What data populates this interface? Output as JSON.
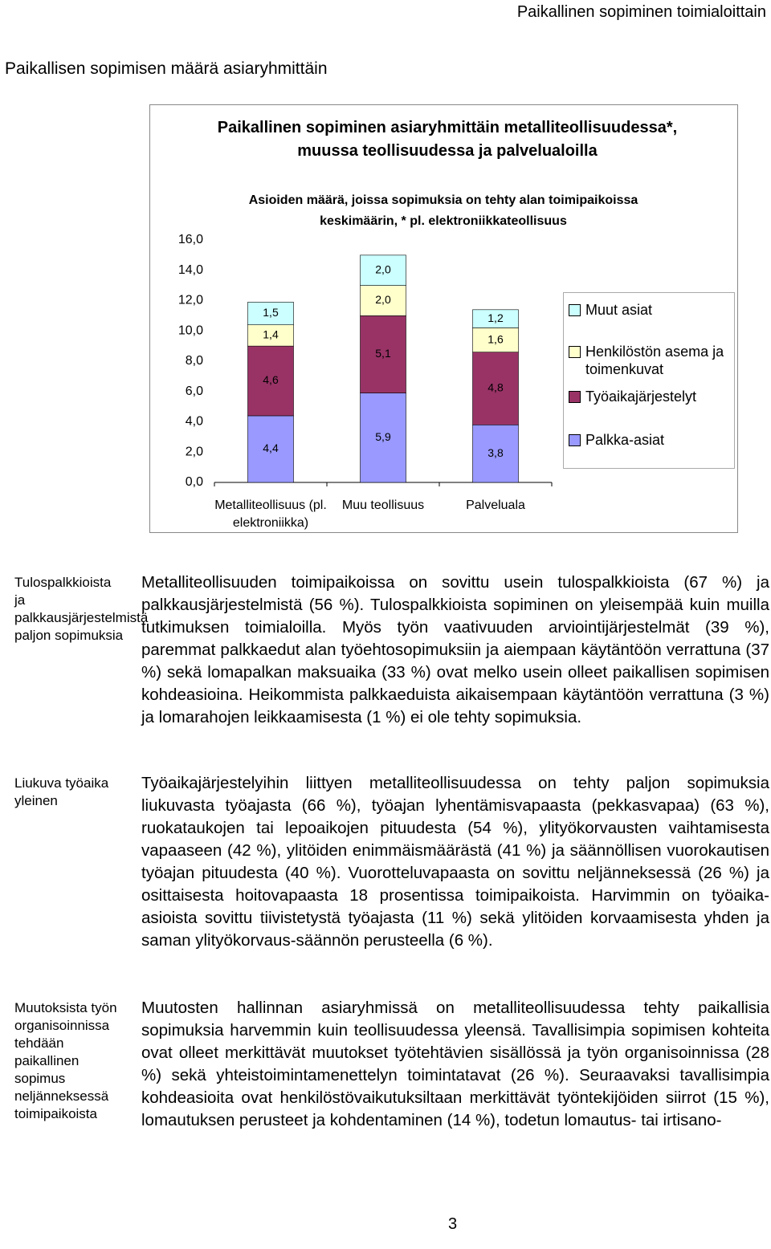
{
  "header": {
    "running_title": "Paikallinen sopiminen toimialoittain",
    "section_title": "Paikallisen sopimisen määrä asiaryhmittäin"
  },
  "chart_data": {
    "type": "stacked-bar",
    "title": "Paikallinen sopiminen asiaryhmittäin metalliteollisuudessa*, muussa teollisuudessa ja palvelualoilla",
    "subtitle": "Asioiden määrä, joissa sopimuksia on tehty alan toimipaikoissa keskimäärin, * pl. elektroniikkateollisuus",
    "categories": [
      "Metalliteollisuus (pl. elektroniikka)",
      "Muu teollisuus",
      "Palveluala"
    ],
    "series": [
      {
        "name": "Palkka-asiat",
        "color": "#9999ff",
        "values": [
          4.4,
          5.9,
          3.8
        ],
        "value_labels": [
          "4,4",
          "5,9",
          "3,8"
        ]
      },
      {
        "name": "Työaikajärjestelyt",
        "color": "#993366",
        "values": [
          4.6,
          5.1,
          4.8
        ],
        "value_labels": [
          "4,6",
          "5,1",
          "4,8"
        ]
      },
      {
        "name": "Henkilöstön asema ja toimenkuvat",
        "color": "#ffffcc",
        "values": [
          1.4,
          2.0,
          1.6
        ],
        "value_labels": [
          "1,4",
          "2,0",
          "1,6"
        ]
      },
      {
        "name": "Muut asiat",
        "color": "#ccffff",
        "values": [
          1.5,
          2.0,
          1.2
        ],
        "value_labels": [
          "1,5",
          "2,0",
          "1,2"
        ]
      }
    ],
    "ylim": [
      0,
      16
    ],
    "yticks": [
      {
        "value": 0,
        "label": "0,0"
      },
      {
        "value": 2,
        "label": "2,0"
      },
      {
        "value": 4,
        "label": "4,0"
      },
      {
        "value": 6,
        "label": "6,0"
      },
      {
        "value": 8,
        "label": "8,0"
      },
      {
        "value": 10,
        "label": "10,0"
      },
      {
        "value": 12,
        "label": "12,0"
      },
      {
        "value": 14,
        "label": "14,0"
      },
      {
        "value": 16,
        "label": "16,0"
      }
    ],
    "legend": "right"
  },
  "sections": [
    {
      "note": "Tulospalkkioista ja palkkausjärjestelmistä paljon sopimuksia",
      "text": "Metalliteollisuuden toimipaikoissa on sovittu usein tulospalkkioista (67 %) ja palkkausjärjestelmistä (56 %). Tulospalkkioista sopiminen on yleisempää kuin muilla tutkimuksen toimialoilla. Myös työn vaativuuden arviointijärjestelmät (39 %), paremmat palkkaedut alan työehtosopimuksiin ja aiempaan käytäntöön verrattuna (37 %) sekä lomapalkan maksuaika (33 %) ovat melko usein olleet paikallisen sopimisen kohdeasioina. Heikommista palkkaeduista aikaisempaan käytäntöön verrattuna (3 %) ja lomarahojen leikkaamisesta (1 %) ei ole tehty sopimuksia."
    },
    {
      "note": "Liukuva työaika yleinen",
      "text": "Työaikajärjestelyihin liittyen metalliteollisuudessa on tehty paljon sopimuksia liukuvasta työajasta (66 %), työajan lyhentämisvapaasta (pekkasvapaa) (63 %), ruokataukojen tai lepoaikojen pituudesta (54 %), ylityökorvausten vaihtamisesta vapaaseen (42 %), ylitöiden enimmäismäärästä (41 %) ja säännöllisen vuorokautisen työajan pituudesta (40 %). Vuorotteluvapaasta on sovittu neljänneksessä (26 %) ja osittaisesta hoitovapaasta 18 prosentissa toimipaikoista. Harvimmin on työaika-asioista sovittu tiivistetystä työajasta (11 %) sekä ylitöiden korvaamisesta yhden ja saman ylityökorvaus-säännön perusteella (6 %)."
    },
    {
      "note": "Muutoksista työn organisoinnissa tehdään paikallinen sopimus neljänneksessä toimipaikoista",
      "text": "Muutosten hallinnan asiaryhmissä on metalliteollisuudessa tehty paikallisia sopimuksia harvemmin kuin teollisuudessa yleensä. Tavallisimpia sopimisen kohteita ovat olleet merkittävät muutokset työtehtävien sisällössä ja työn organisoinnissa (28 %) sekä yhteistoimintamenettelyn toimintatavat (26 %). Seuraavaksi tavallisimpia kohdeasioita ovat henkilöstövaikutuksiltaan merkittävät työntekijöiden siirrot (15 %), lomautuksen perusteet ja kohdentaminen (14 %), todetun lomautus- tai irtisano-"
    }
  ],
  "page_number": "3"
}
